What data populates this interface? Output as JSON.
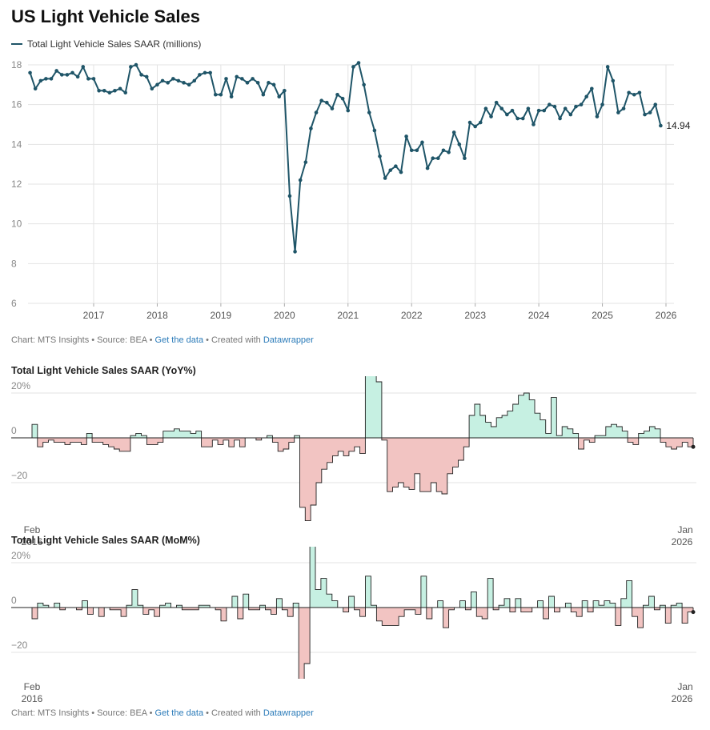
{
  "title": "US Light Vehicle Sales",
  "legend_label": "Total Light Vehicle Sales SAAR (millions)",
  "colors": {
    "line": "#1f5568",
    "positive": "#c6f0e2",
    "negative": "#f2c4c2",
    "grid": "#e3e3e3",
    "axis": "#888888"
  },
  "footer1": {
    "chart_by": "Chart: MTS Insights",
    "sep": " • ",
    "source": "Source: BEA",
    "get_data": "Get the data",
    "created": "Created with",
    "dw": "Datawrapper"
  },
  "footer2": {
    "chart_by": "Chart: MTS Insights",
    "sep": " • ",
    "source": "Source: BEA",
    "get_data": "Get the data",
    "created": "Created with",
    "dw": "Datawrapper"
  },
  "yoy_title": "Total Light Vehicle Sales SAAR (YoY%)",
  "mom_title": "Total Light Vehicle Sales SAAR (MoM%)",
  "chart_data": [
    {
      "type": "line",
      "title": "US Light Vehicle Sales",
      "series_name": "Total Light Vehicle Sales SAAR (millions)",
      "start": "2016-01",
      "x_ticks": [
        "2017",
        "2018",
        "2019",
        "2020",
        "2021",
        "2022",
        "2023",
        "2024",
        "2025",
        "2026"
      ],
      "y_ticks": [
        6,
        8,
        10,
        12,
        14,
        16,
        18
      ],
      "ylim": [
        6,
        18.4
      ],
      "end_label": "14.94",
      "values": [
        17.6,
        16.8,
        17.2,
        17.3,
        17.3,
        17.7,
        17.5,
        17.5,
        17.6,
        17.4,
        17.9,
        17.3,
        17.3,
        16.7,
        16.7,
        16.6,
        16.7,
        16.8,
        16.6,
        17.9,
        18.0,
        17.5,
        17.4,
        16.8,
        17.0,
        17.2,
        17.1,
        17.3,
        17.2,
        17.1,
        17.0,
        17.2,
        17.5,
        17.6,
        17.6,
        16.5,
        16.5,
        17.3,
        16.4,
        17.4,
        17.3,
        17.1,
        17.3,
        17.1,
        16.5,
        17.1,
        17.0,
        16.4,
        16.7,
        11.4,
        8.6,
        12.2,
        13.1,
        14.8,
        15.6,
        16.2,
        16.1,
        15.8,
        16.5,
        16.3,
        15.7,
        17.9,
        18.1,
        17.0,
        15.6,
        14.7,
        13.4,
        12.3,
        12.7,
        12.9,
        12.6,
        14.4,
        13.7,
        13.7,
        14.1,
        12.8,
        13.3,
        13.3,
        13.7,
        13.6,
        14.6,
        14.0,
        13.3,
        15.1,
        14.9,
        15.1,
        15.8,
        15.4,
        16.1,
        15.8,
        15.5,
        15.7,
        15.3,
        15.3,
        15.8,
        15.0,
        15.7,
        15.7,
        16.0,
        15.9,
        15.3,
        15.8,
        15.5,
        15.9,
        16.0,
        16.4,
        16.8,
        15.4,
        16.0,
        17.9,
        17.2,
        15.6,
        15.8,
        16.6,
        16.5,
        16.6,
        15.5,
        15.6,
        16.0,
        14.94
      ]
    },
    {
      "type": "area",
      "title": "Total Light Vehicle Sales SAAR (YoY%)",
      "start": "2016-02",
      "x_start_label": [
        "Feb",
        "2016"
      ],
      "x_end_label": [
        "Jan",
        "2026"
      ],
      "y_ticks": [
        "20%",
        "0",
        "−20"
      ],
      "ylim": [
        -37,
        27
      ],
      "values": [
        6,
        -4,
        -2,
        -1,
        -2,
        -2,
        -3,
        -2,
        -2,
        -3,
        2,
        -2,
        -2,
        -3,
        -4,
        -5,
        -6,
        -6,
        1,
        2,
        1,
        -3,
        -3,
        -2,
        3,
        3,
        4,
        3,
        3,
        2,
        3,
        -4,
        -4,
        -1,
        -3,
        -1,
        -4,
        -1,
        -4,
        0,
        0,
        -1,
        0,
        1,
        -2,
        -6,
        -5,
        -2,
        1,
        -31,
        -37,
        -30,
        -20,
        -14,
        -11,
        -8,
        -6,
        -8,
        -6,
        -4,
        -7,
        60,
        40,
        25,
        -1,
        -24,
        -22,
        -20,
        -22,
        -23,
        -16,
        -24,
        -24,
        -20,
        -24,
        -25,
        -16,
        -13,
        -10,
        -4,
        10,
        15,
        10,
        7,
        5,
        9,
        10,
        12,
        15,
        19,
        20,
        17,
        11,
        8,
        2,
        18,
        1,
        5,
        4,
        2,
        -5,
        -1,
        -2,
        1,
        1,
        5,
        6,
        5,
        3,
        -2,
        -3,
        2,
        3,
        5,
        4,
        -2,
        -4,
        -5,
        -4,
        -2,
        -4
      ]
    },
    {
      "type": "area",
      "title": "Total Light Vehicle Sales SAAR (MoM%)",
      "start": "2016-02",
      "x_start_label": [
        "Feb",
        "2016"
      ],
      "x_end_label": [
        "Jan",
        "2026"
      ],
      "y_ticks": [
        "20%",
        "0",
        "−20"
      ],
      "ylim": [
        -33,
        27
      ],
      "values": [
        -5,
        2,
        1,
        0,
        2,
        -1,
        0,
        0,
        -1,
        3,
        -3,
        0,
        -4,
        0,
        -1,
        -1,
        -4,
        1,
        8,
        1,
        -3,
        -1,
        -4,
        1,
        2,
        0,
        1,
        -1,
        -1,
        -1,
        1,
        1,
        0,
        -1,
        -6,
        0,
        5,
        -5,
        6,
        -1,
        -1,
        1,
        -1,
        -3,
        4,
        -1,
        -4,
        2,
        -32,
        -25,
        42,
        8,
        13,
        6,
        3,
        0,
        -2,
        5,
        -1,
        -4,
        14,
        1,
        -6,
        -8,
        -8,
        -8,
        -4,
        -1,
        -1,
        -3,
        14,
        -5,
        0,
        3,
        -9,
        -1,
        0,
        3,
        -1,
        7,
        -4,
        -5,
        13,
        -1,
        1,
        4,
        -2,
        4,
        -2,
        -2,
        0,
        3,
        -5,
        5,
        -2,
        0,
        2,
        -2,
        -4,
        3,
        -2,
        3,
        1,
        3,
        2,
        -8,
        4,
        12,
        -4,
        -9,
        1,
        5,
        -1,
        1,
        -7,
        1,
        2,
        -7,
        -2
      ]
    }
  ]
}
